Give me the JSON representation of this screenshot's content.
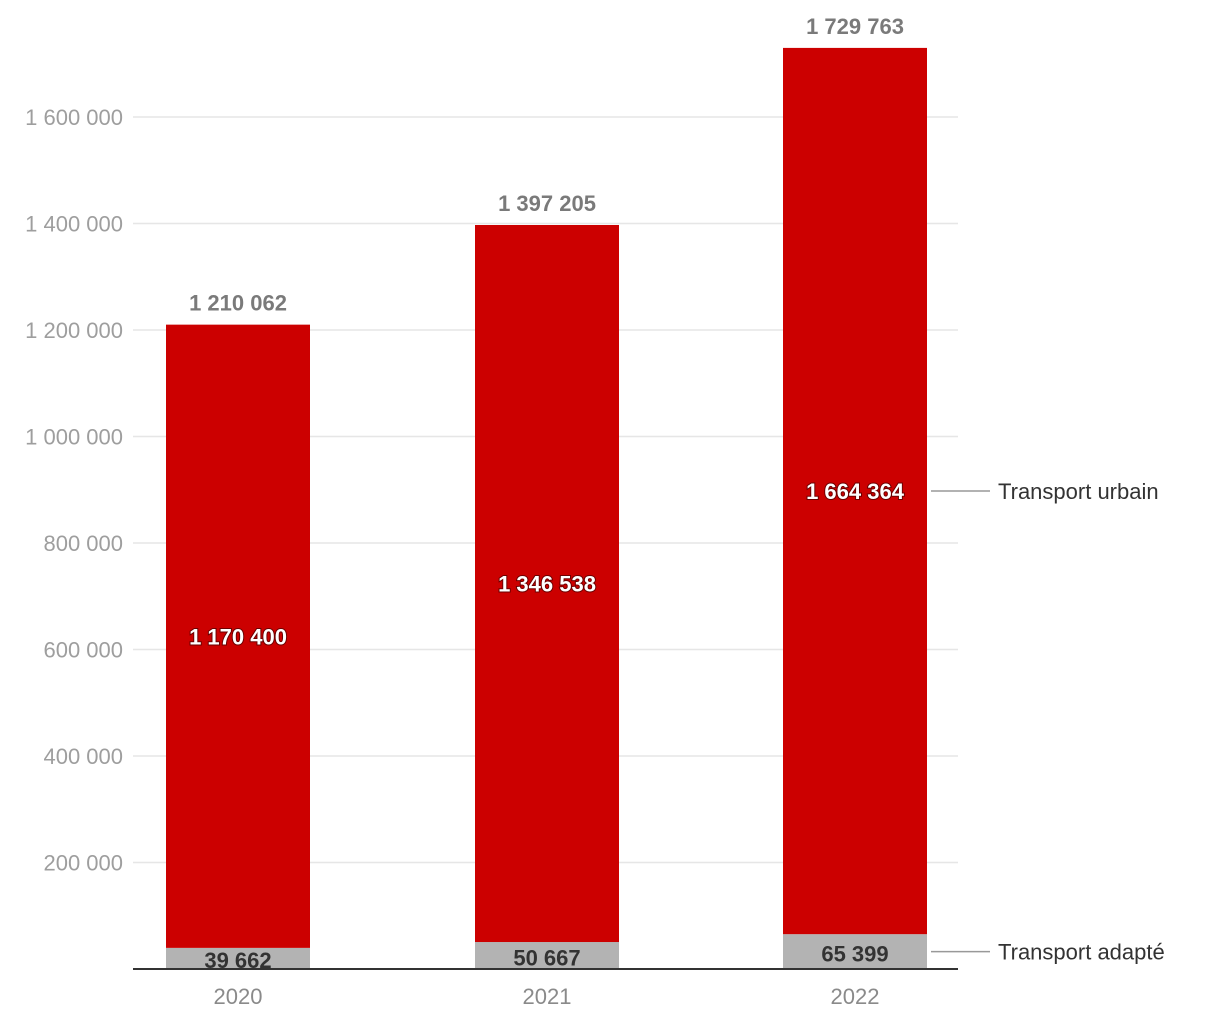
{
  "chart_data": {
    "type": "bar",
    "stacked": true,
    "categories": [
      "2020",
      "2021",
      "2022"
    ],
    "series": [
      {
        "name": "Transport adapté",
        "color": "#b3b3b3",
        "values": [
          39662,
          50667,
          65399
        ],
        "labels": [
          "39 662",
          "50 667",
          "65 399"
        ]
      },
      {
        "name": "Transport urbain",
        "color": "#cc0000",
        "values": [
          1170400,
          1346538,
          1664364
        ],
        "labels": [
          "1 170 400",
          "1 346 538",
          "1 664 364"
        ]
      }
    ],
    "totals": [
      1210062,
      1397205,
      1729763
    ],
    "total_labels": [
      "1 210 062",
      "1 397 205",
      "1 729 763"
    ],
    "ylim": [
      0,
      1800000
    ],
    "yticks": [
      200000,
      400000,
      600000,
      800000,
      1000000,
      1200000,
      1400000,
      1600000
    ],
    "ytick_labels": [
      "200 000",
      "400 000",
      "600 000",
      "800 000",
      "1 000 000",
      "1 200 000",
      "1 400 000",
      "1 600 000"
    ],
    "grid": true,
    "legend": "right, inline labels",
    "gridline_color": "#e6e6e6",
    "axis_color": "#333333"
  }
}
